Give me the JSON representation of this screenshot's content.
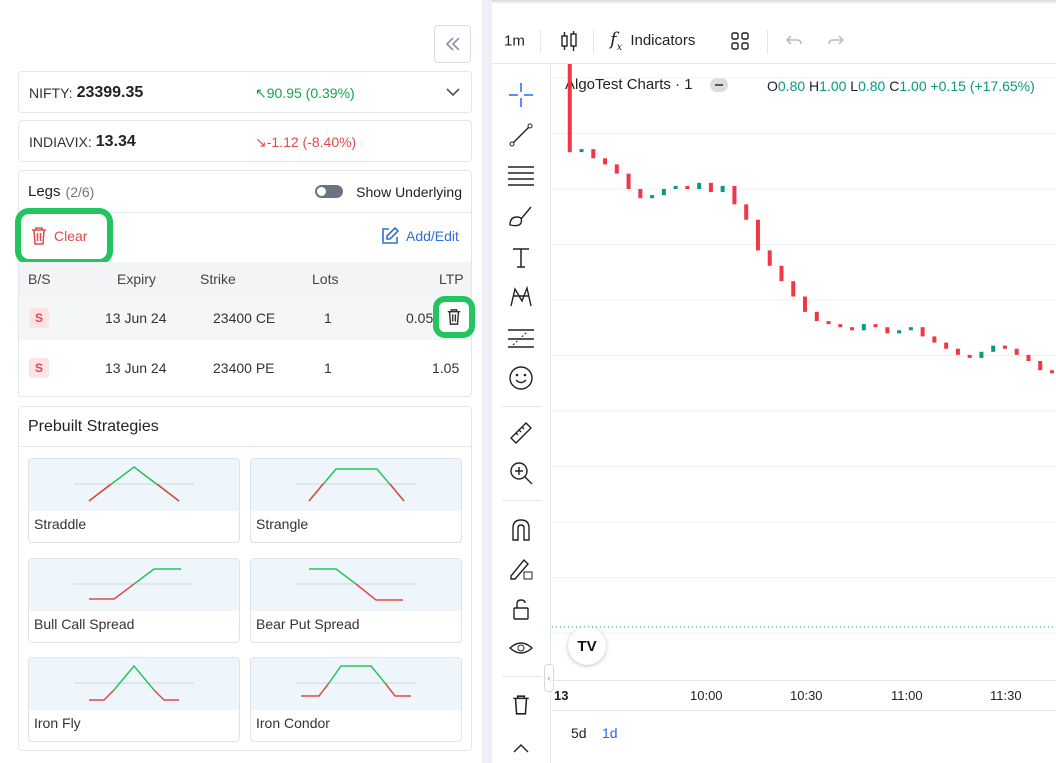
{
  "indices": [
    {
      "name": "NIFTY:",
      "value": "23399.35",
      "change": "90.95 (0.39%)",
      "direction": "up"
    },
    {
      "name": "INDIAVIX:",
      "value": "13.34",
      "change": "-1.12 (-8.40%)",
      "direction": "down"
    }
  ],
  "legs": {
    "title": "Legs",
    "count": "(2/6)",
    "show_underlying_label": "Show Underlying",
    "clear_label": "Clear",
    "add_edit_label": "Add/Edit",
    "columns": [
      "B/S",
      "Expiry",
      "Strike",
      "Lots",
      "LTP"
    ],
    "rows": [
      {
        "bs": "S",
        "expiry": "13 Jun 24",
        "strike": "23400 CE",
        "lots": "1",
        "ltp": "0.05"
      },
      {
        "bs": "S",
        "expiry": "13 Jun 24",
        "strike": "23400 PE",
        "lots": "1",
        "ltp": "1.05"
      }
    ]
  },
  "prebuilt": {
    "title": "Prebuilt Strategies",
    "items": [
      "Straddle",
      "Strangle",
      "Bull Call Spread",
      "Bear Put Spread",
      "Iron Fly",
      "Iron Condor"
    ]
  },
  "toolbar": {
    "interval": "1m",
    "indicators_label": "Indicators"
  },
  "chart_header": {
    "symbol": "AlgoTest Charts · 1",
    "o_label": "O",
    "o": "0.80",
    "h_label": "H",
    "h": "1.00",
    "l_label": "L",
    "l": "0.80",
    "c_label": "C",
    "c": "1.00",
    "change": "+0.15 (+17.65%)"
  },
  "time_axis": [
    "13",
    "10:00",
    "10:30",
    "11:00",
    "11:30"
  ],
  "ranges": [
    "5d",
    "1d"
  ],
  "active_range": "1d",
  "colors": {
    "up": "#089981",
    "down": "#f23645",
    "accent": "#2962ff",
    "highlight": "#22c55e"
  },
  "chart_data": {
    "type": "candlestick",
    "series": [
      {
        "values": [
          1.9,
          1.42,
          1.43,
          1.4,
          1.38,
          1.35,
          1.3,
          1.27,
          1.28,
          1.3,
          1.31,
          1.3,
          1.32,
          1.29,
          1.31,
          1.25,
          1.2,
          1.1,
          1.05,
          1.0,
          0.95,
          0.9,
          0.87,
          0.86,
          0.85,
          0.84,
          0.86,
          0.85,
          0.83,
          0.84,
          0.85,
          0.82,
          0.8,
          0.78,
          0.76,
          0.75,
          0.77,
          0.79,
          0.78,
          0.76,
          0.74,
          0.71,
          0.7
        ]
      }
    ]
  }
}
